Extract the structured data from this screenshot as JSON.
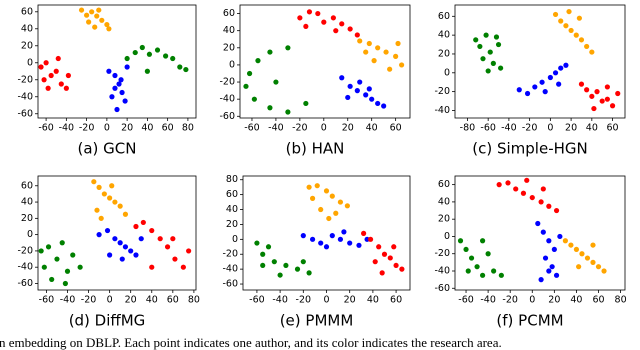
{
  "chart_data": [
    {
      "type": "scatter",
      "title": "(a) GCN",
      "xlim": [
        -68,
        88
      ],
      "ylim": [
        -65,
        68
      ],
      "xticks": [
        -60,
        -40,
        -20,
        0,
        20,
        40,
        60,
        80
      ],
      "yticks": [
        -60,
        -40,
        -20,
        0,
        20,
        40,
        60
      ],
      "series": [
        {
          "color": "#ffa500",
          "x": [
            -25,
            -20,
            -15,
            -10,
            -5,
            0,
            2,
            -18,
            -8,
            -12
          ],
          "y": [
            62,
            56,
            60,
            55,
            50,
            45,
            40,
            48,
            62,
            42
          ]
        },
        {
          "color": "#ff0000",
          "x": [
            -65,
            -60,
            -55,
            -50,
            -45,
            -40,
            -58,
            -48,
            -38,
            -62
          ],
          "y": [
            -5,
            0,
            -15,
            -10,
            -25,
            -30,
            -30,
            5,
            -15,
            -20
          ]
        },
        {
          "color": "#008000",
          "x": [
            20,
            28,
            35,
            42,
            50,
            58,
            65,
            72,
            78,
            40
          ],
          "y": [
            5,
            12,
            18,
            10,
            15,
            8,
            5,
            -5,
            -8,
            -10
          ]
        },
        {
          "color": "#0000ff",
          "x": [
            2,
            8,
            12,
            15,
            18,
            10,
            5,
            14,
            20,
            8
          ],
          "y": [
            -10,
            -15,
            -25,
            -35,
            -45,
            -55,
            -40,
            -20,
            -5,
            -30
          ]
        }
      ]
    },
    {
      "type": "scatter",
      "title": "(b) HAN",
      "xlim": [
        -70,
        72
      ],
      "ylim": [
        -62,
        70
      ],
      "xticks": [
        -60,
        -40,
        -20,
        0,
        20,
        40,
        60
      ],
      "yticks": [
        -60,
        -40,
        -20,
        0,
        20,
        40,
        60
      ],
      "series": [
        {
          "color": "#ff0000",
          "x": [
            -20,
            -12,
            -5,
            0,
            8,
            15,
            22,
            28,
            -15,
            10
          ],
          "y": [
            55,
            62,
            60,
            50,
            55,
            48,
            42,
            35,
            45,
            40
          ]
        },
        {
          "color": "#008000",
          "x": [
            -30,
            -45,
            -55,
            -62,
            -65,
            -58,
            -45,
            -30,
            -15,
            -40
          ],
          "y": [
            20,
            15,
            5,
            -10,
            -25,
            -40,
            -50,
            -55,
            -45,
            -20
          ]
        },
        {
          "color": "#ffa500",
          "x": [
            30,
            38,
            45,
            52,
            60,
            65,
            42,
            55,
            35,
            62
          ],
          "y": [
            28,
            25,
            20,
            15,
            10,
            0,
            5,
            -5,
            15,
            25
          ]
        },
        {
          "color": "#0000ff",
          "x": [
            15,
            22,
            28,
            35,
            40,
            45,
            50,
            30,
            20,
            38
          ],
          "y": [
            -15,
            -25,
            -30,
            -35,
            -40,
            -45,
            -48,
            -20,
            -38,
            -28
          ]
        }
      ]
    },
    {
      "type": "scatter",
      "title": "(c) Simple-HGN",
      "xlim": [
        -92,
        72
      ],
      "ylim": [
        -48,
        72
      ],
      "xticks": [
        -80,
        -60,
        -40,
        -20,
        0,
        20,
        40,
        60
      ],
      "yticks": [
        -40,
        -20,
        0,
        20,
        40,
        60
      ],
      "series": [
        {
          "color": "#008000",
          "x": [
            -72,
            -68,
            -62,
            -58,
            -55,
            -50,
            -48,
            -65,
            -60,
            -52
          ],
          "y": [
            35,
            28,
            40,
            22,
            10,
            30,
            5,
            15,
            2,
            38
          ]
        },
        {
          "color": "#ffa500",
          "x": [
            5,
            10,
            15,
            20,
            25,
            30,
            35,
            40,
            18,
            28
          ],
          "y": [
            62,
            55,
            50,
            45,
            40,
            35,
            28,
            22,
            65,
            58
          ]
        },
        {
          "color": "#0000ff",
          "x": [
            -30,
            -22,
            -15,
            -8,
            0,
            5,
            10,
            15,
            -5,
            8
          ],
          "y": [
            -18,
            -22,
            -15,
            -10,
            -5,
            0,
            5,
            8,
            -20,
            -12
          ]
        },
        {
          "color": "#ff0000",
          "x": [
            30,
            35,
            40,
            45,
            50,
            55,
            60,
            65,
            42,
            55
          ],
          "y": [
            -12,
            -18,
            -25,
            -20,
            -30,
            -28,
            -35,
            -22,
            -38,
            -15
          ]
        }
      ]
    },
    {
      "type": "scatter",
      "title": "(d) DiffMG",
      "xlim": [
        -68,
        82
      ],
      "ylim": [
        -68,
        72
      ],
      "xticks": [
        -60,
        -40,
        -20,
        0,
        20,
        40,
        60,
        80
      ],
      "yticks": [
        -60,
        -40,
        -20,
        0,
        20,
        40,
        60
      ],
      "series": [
        {
          "color": "#ffa500",
          "x": [
            -15,
            -10,
            -5,
            0,
            5,
            10,
            15,
            -8,
            2,
            -12
          ],
          "y": [
            65,
            58,
            50,
            45,
            40,
            35,
            25,
            20,
            60,
            30
          ]
        },
        {
          "color": "#008000",
          "x": [
            -65,
            -58,
            -50,
            -45,
            -40,
            -35,
            -28,
            -55,
            -42,
            -62
          ],
          "y": [
            -20,
            -15,
            -30,
            -10,
            -45,
            -25,
            -40,
            -55,
            -60,
            -40
          ]
        },
        {
          "color": "#0000ff",
          "x": [
            -10,
            -2,
            5,
            10,
            15,
            20,
            25,
            30,
            0,
            12
          ],
          "y": [
            0,
            5,
            -5,
            -10,
            -15,
            -20,
            -25,
            -5,
            -25,
            -30
          ]
        },
        {
          "color": "#ff0000",
          "x": [
            25,
            32,
            40,
            48,
            55,
            62,
            70,
            75,
            40,
            60
          ],
          "y": [
            10,
            15,
            5,
            -5,
            -15,
            -30,
            -40,
            -20,
            -40,
            -5
          ]
        }
      ]
    },
    {
      "type": "scatter",
      "title": "(e) PMMM",
      "xlim": [
        -72,
        72
      ],
      "ylim": [
        -68,
        85
      ],
      "xticks": [
        -60,
        -40,
        -20,
        0,
        20,
        40,
        60
      ],
      "yticks": [
        -60,
        -40,
        -20,
        0,
        20,
        40,
        60,
        80
      ],
      "series": [
        {
          "color": "#ffa500",
          "x": [
            -15,
            -8,
            0,
            5,
            12,
            18,
            -5,
            8,
            -12,
            2
          ],
          "y": [
            70,
            72,
            65,
            58,
            50,
            45,
            40,
            35,
            55,
            28
          ]
        },
        {
          "color": "#008000",
          "x": [
            -60,
            -55,
            -45,
            -35,
            -25,
            -15,
            -55,
            -40,
            -50,
            -20
          ],
          "y": [
            -5,
            -20,
            -30,
            -35,
            -40,
            -45,
            -35,
            -48,
            -10,
            -30
          ]
        },
        {
          "color": "#0000ff",
          "x": [
            -20,
            -12,
            -5,
            5,
            12,
            20,
            28,
            35,
            0,
            15
          ],
          "y": [
            5,
            0,
            -5,
            5,
            0,
            -5,
            -8,
            0,
            -10,
            10
          ]
        },
        {
          "color": "#ff0000",
          "x": [
            32,
            38,
            45,
            50,
            55,
            60,
            65,
            42,
            58,
            48
          ],
          "y": [
            8,
            0,
            -10,
            -20,
            -25,
            -35,
            -40,
            -30,
            -10,
            -45
          ]
        }
      ]
    },
    {
      "type": "scatter",
      "title": "(f) PCMM",
      "xlim": [
        -70,
        84
      ],
      "ylim": [
        -62,
        70
      ],
      "xticks": [
        -60,
        -40,
        -20,
        0,
        20,
        40,
        60,
        80
      ],
      "yticks": [
        -60,
        -40,
        -20,
        0,
        20,
        40,
        60
      ],
      "series": [
        {
          "color": "#ff0000",
          "x": [
            -30,
            -22,
            -15,
            -8,
            0,
            8,
            15,
            22,
            -5,
            10
          ],
          "y": [
            60,
            62,
            55,
            50,
            45,
            40,
            35,
            30,
            65,
            55
          ]
        },
        {
          "color": "#008000",
          "x": [
            -65,
            -60,
            -55,
            -50,
            -45,
            -40,
            -35,
            -28,
            -58,
            -45
          ],
          "y": [
            -5,
            -15,
            -25,
            -35,
            -45,
            -20,
            -40,
            -45,
            -40,
            -5
          ]
        },
        {
          "color": "#0000ff",
          "x": [
            5,
            10,
            15,
            20,
            12,
            18,
            22,
            8,
            25,
            15
          ],
          "y": [
            15,
            5,
            -5,
            -15,
            -25,
            -35,
            -45,
            -50,
            0,
            -40
          ]
        },
        {
          "color": "#ffa500",
          "x": [
            30,
            35,
            40,
            45,
            50,
            55,
            60,
            65,
            42,
            55
          ],
          "y": [
            -5,
            -10,
            -15,
            -20,
            -25,
            -30,
            -35,
            -40,
            -35,
            -10
          ]
        }
      ]
    }
  ],
  "caption": "n embedding on DBLP. Each point indicates one author, and its color indicates the research area."
}
